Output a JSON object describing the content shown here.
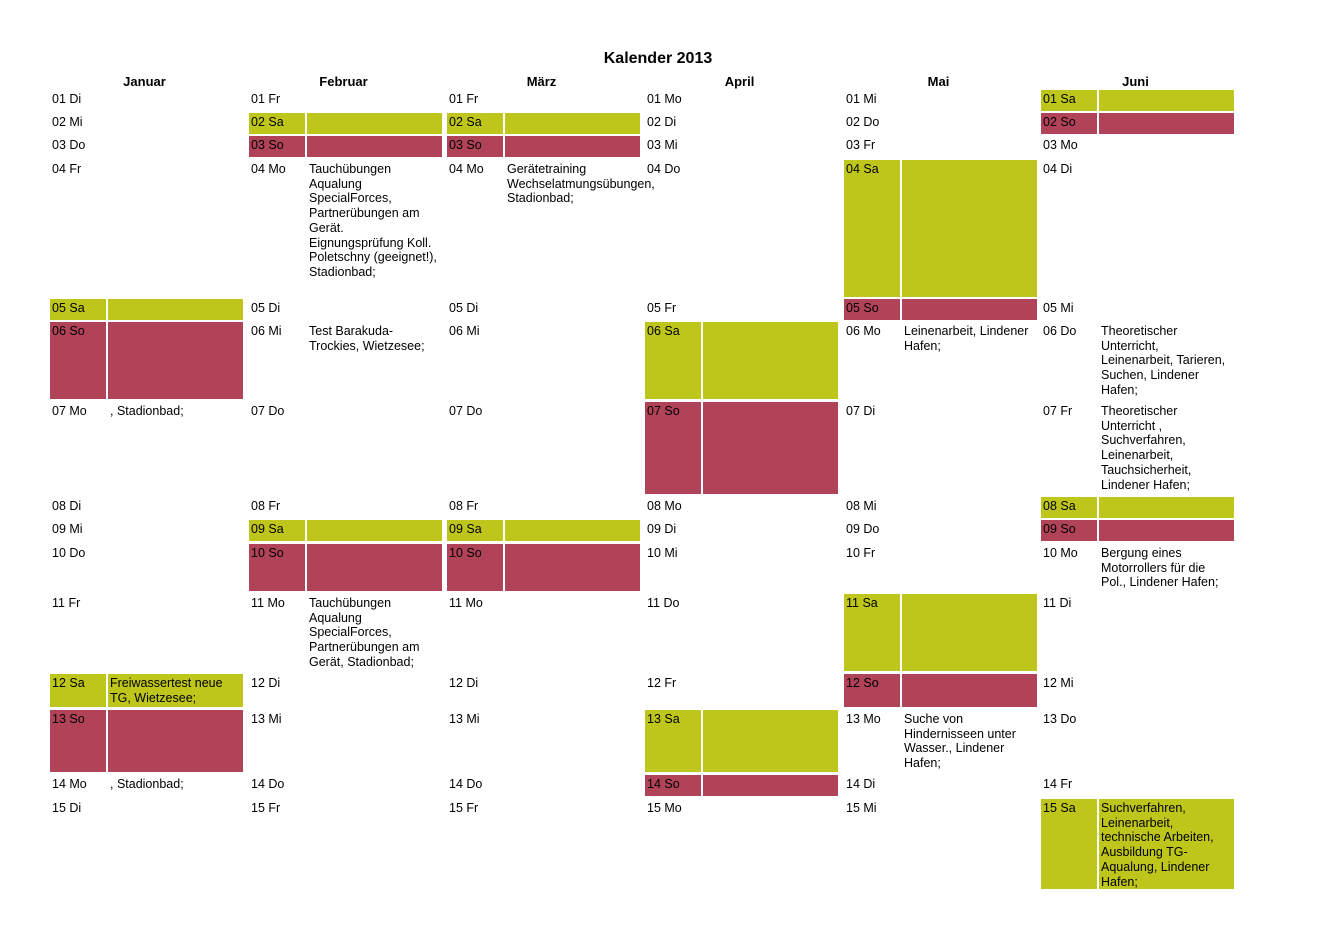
{
  "title": "Kalender 2013",
  "colors": {
    "saturday": "#bfc61b",
    "sunday": "#b04357"
  },
  "months": [
    "Januar",
    "Februar",
    "März",
    "April",
    "Mai",
    "Juni"
  ],
  "rows": [
    {
      "cells": [
        {
          "day": "01 Di",
          "note": "",
          "type": ""
        },
        {
          "day": "01 Fr",
          "note": "",
          "type": ""
        },
        {
          "day": "01 Fr",
          "note": "",
          "type": ""
        },
        {
          "day": "01 Mo",
          "note": "",
          "type": ""
        },
        {
          "day": "01 Mi",
          "note": "",
          "type": ""
        },
        {
          "day": "01 Sa",
          "note": "",
          "type": "sa"
        }
      ]
    },
    {
      "cells": [
        {
          "day": "02 Mi",
          "note": "",
          "type": ""
        },
        {
          "day": "02 Sa",
          "note": "",
          "type": "sa"
        },
        {
          "day": "02 Sa",
          "note": "",
          "type": "sa"
        },
        {
          "day": "02 Di",
          "note": "",
          "type": ""
        },
        {
          "day": "02 Do",
          "note": "",
          "type": ""
        },
        {
          "day": "02 So",
          "note": "",
          "type": "so"
        }
      ]
    },
    {
      "cells": [
        {
          "day": "03 Do",
          "note": "",
          "type": ""
        },
        {
          "day": "03 So",
          "note": "",
          "type": "so"
        },
        {
          "day": "03 So",
          "note": "",
          "type": "so"
        },
        {
          "day": "03 Mi",
          "note": "",
          "type": ""
        },
        {
          "day": "03 Fr",
          "note": "",
          "type": ""
        },
        {
          "day": "03 Mo",
          "note": "",
          "type": ""
        }
      ]
    },
    {
      "cells": [
        {
          "day": "04 Fr",
          "note": "",
          "type": ""
        },
        {
          "day": "04 Mo",
          "note": "Tauchübungen Aqualung SpecialForces, Partnerübungen am Gerät. Eignungsprüfung Koll. Poletschny (geeignet!), Stadionbad;",
          "type": ""
        },
        {
          "day": "04 Mo",
          "note": "Gerätetraining Wechselatmungsübungen, Stadionbad;",
          "type": ""
        },
        {
          "day": "04 Do",
          "note": "",
          "type": ""
        },
        {
          "day": "04 Sa",
          "note": "",
          "type": "sa"
        },
        {
          "day": "04 Di",
          "note": "",
          "type": ""
        }
      ]
    },
    {
      "cells": [
        {
          "day": "05 Sa",
          "note": "",
          "type": "sa"
        },
        {
          "day": "05 Di",
          "note": "",
          "type": ""
        },
        {
          "day": "05 Di",
          "note": "",
          "type": ""
        },
        {
          "day": "05 Fr",
          "note": "",
          "type": ""
        },
        {
          "day": "05 So",
          "note": "",
          "type": "so"
        },
        {
          "day": "05 Mi",
          "note": "",
          "type": ""
        }
      ]
    },
    {
      "cells": [
        {
          "day": "06 So",
          "note": "",
          "type": "so"
        },
        {
          "day": "06 Mi",
          "note": "Test Barakuda-Trockies, Wietzesee;",
          "type": ""
        },
        {
          "day": "06 Mi",
          "note": "",
          "type": ""
        },
        {
          "day": "06 Sa",
          "note": "",
          "type": "sa"
        },
        {
          "day": "06 Mo",
          "note": "Leinenarbeit, Lindener Hafen;",
          "type": ""
        },
        {
          "day": "06 Do",
          "note": "Theoretischer Unterricht, Leinenarbeit, Tarieren, Suchen, Lindener Hafen;",
          "type": ""
        }
      ]
    },
    {
      "cells": [
        {
          "day": "07 Mo",
          "note": ", Stadionbad;",
          "type": ""
        },
        {
          "day": "07 Do",
          "note": "",
          "type": ""
        },
        {
          "day": "07 Do",
          "note": "",
          "type": ""
        },
        {
          "day": "07 So",
          "note": "",
          "type": "so"
        },
        {
          "day": "07 Di",
          "note": "",
          "type": ""
        },
        {
          "day": "07 Fr",
          "note": "Theoretischer Unterricht , Suchverfahren, Leinenarbeit, Tauchsicherheit, Lindener Hafen;",
          "type": ""
        }
      ]
    },
    {
      "cells": [
        {
          "day": "08 Di",
          "note": "",
          "type": ""
        },
        {
          "day": "08 Fr",
          "note": "",
          "type": ""
        },
        {
          "day": "08 Fr",
          "note": "",
          "type": ""
        },
        {
          "day": "08 Mo",
          "note": "",
          "type": ""
        },
        {
          "day": "08 Mi",
          "note": "",
          "type": ""
        },
        {
          "day": "08 Sa",
          "note": "",
          "type": "sa"
        }
      ]
    },
    {
      "cells": [
        {
          "day": "09 Mi",
          "note": "",
          "type": ""
        },
        {
          "day": "09 Sa",
          "note": "",
          "type": "sa"
        },
        {
          "day": "09 Sa",
          "note": "",
          "type": "sa"
        },
        {
          "day": "09 Di",
          "note": "",
          "type": ""
        },
        {
          "day": "09 Do",
          "note": "",
          "type": ""
        },
        {
          "day": "09 So",
          "note": "",
          "type": "so"
        }
      ]
    },
    {
      "cells": [
        {
          "day": "10 Do",
          "note": "",
          "type": ""
        },
        {
          "day": "10 So",
          "note": "",
          "type": "so"
        },
        {
          "day": "10 So",
          "note": "",
          "type": "so"
        },
        {
          "day": "10 Mi",
          "note": "",
          "type": ""
        },
        {
          "day": "10 Fr",
          "note": "",
          "type": ""
        },
        {
          "day": "10 Mo",
          "note": "Bergung eines Motorrollers für die Pol., Lindener Hafen;",
          "type": ""
        }
      ]
    },
    {
      "cells": [
        {
          "day": "11 Fr",
          "note": "",
          "type": ""
        },
        {
          "day": "11 Mo",
          "note": "Tauchübungen Aqualung SpecialForces, Partnerübungen am Gerät, Stadionbad;",
          "type": ""
        },
        {
          "day": "11 Mo",
          "note": "",
          "type": ""
        },
        {
          "day": "11 Do",
          "note": "",
          "type": ""
        },
        {
          "day": "11 Sa",
          "note": "",
          "type": "sa"
        },
        {
          "day": "11 Di",
          "note": "",
          "type": ""
        }
      ]
    },
    {
      "cells": [
        {
          "day": "12 Sa",
          "note": "Freiwassertest neue TG, Wietzesee;",
          "type": "sa"
        },
        {
          "day": "12 Di",
          "note": "",
          "type": ""
        },
        {
          "day": "12 Di",
          "note": "",
          "type": ""
        },
        {
          "day": "12 Fr",
          "note": "",
          "type": ""
        },
        {
          "day": "12 So",
          "note": "",
          "type": "so"
        },
        {
          "day": "12 Mi",
          "note": "",
          "type": ""
        }
      ]
    },
    {
      "cells": [
        {
          "day": "13 So",
          "note": "",
          "type": "so"
        },
        {
          "day": "13 Mi",
          "note": "",
          "type": ""
        },
        {
          "day": "13 Mi",
          "note": "",
          "type": ""
        },
        {
          "day": "13 Sa",
          "note": "",
          "type": "sa"
        },
        {
          "day": "13 Mo",
          "note": "Suche von Hindernisseen unter Wasser., Lindener Hafen;",
          "type": ""
        },
        {
          "day": "13 Do",
          "note": "",
          "type": ""
        }
      ]
    },
    {
      "cells": [
        {
          "day": "14 Mo",
          "note": ", Stadionbad;",
          "type": ""
        },
        {
          "day": "14 Do",
          "note": "",
          "type": ""
        },
        {
          "day": "14 Do",
          "note": "",
          "type": ""
        },
        {
          "day": "14 So",
          "note": "",
          "type": "so"
        },
        {
          "day": "14 Di",
          "note": "",
          "type": ""
        },
        {
          "day": "14 Fr",
          "note": "",
          "type": ""
        }
      ]
    },
    {
      "cells": [
        {
          "day": "15 Di",
          "note": "",
          "type": ""
        },
        {
          "day": "15 Fr",
          "note": "",
          "type": ""
        },
        {
          "day": "15 Fr",
          "note": "",
          "type": ""
        },
        {
          "day": "15 Mo",
          "note": "",
          "type": ""
        },
        {
          "day": "15 Mi",
          "note": "",
          "type": ""
        },
        {
          "day": "15 Sa",
          "note": "Suchverfahren, Leinenarbeit, technische Arbeiten, Ausbildung TG-Aqualung, Lindener Hafen;",
          "type": "sa"
        }
      ]
    }
  ]
}
